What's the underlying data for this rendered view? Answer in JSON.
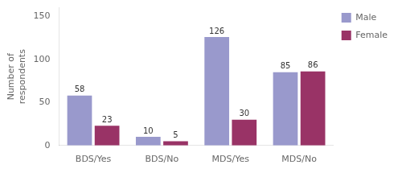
{
  "chart_data": {
    "type": "bar",
    "categories": [
      "BDS/Yes",
      "BDS/No",
      "MDS/Yes",
      "MDS/No"
    ],
    "series": [
      {
        "name": "Male",
        "color": "#9999CC",
        "values": [
          58,
          10,
          126,
          85
        ]
      },
      {
        "name": "Female",
        "color": "#993366",
        "values": [
          23,
          5,
          30,
          86
        ]
      }
    ],
    "ylabel": "Number of\nrespondents",
    "ylim": [
      0,
      160
    ],
    "yticks": [
      0,
      50,
      100,
      150
    ],
    "grid": false,
    "legend": "upper right",
    "data_labels": true
  }
}
